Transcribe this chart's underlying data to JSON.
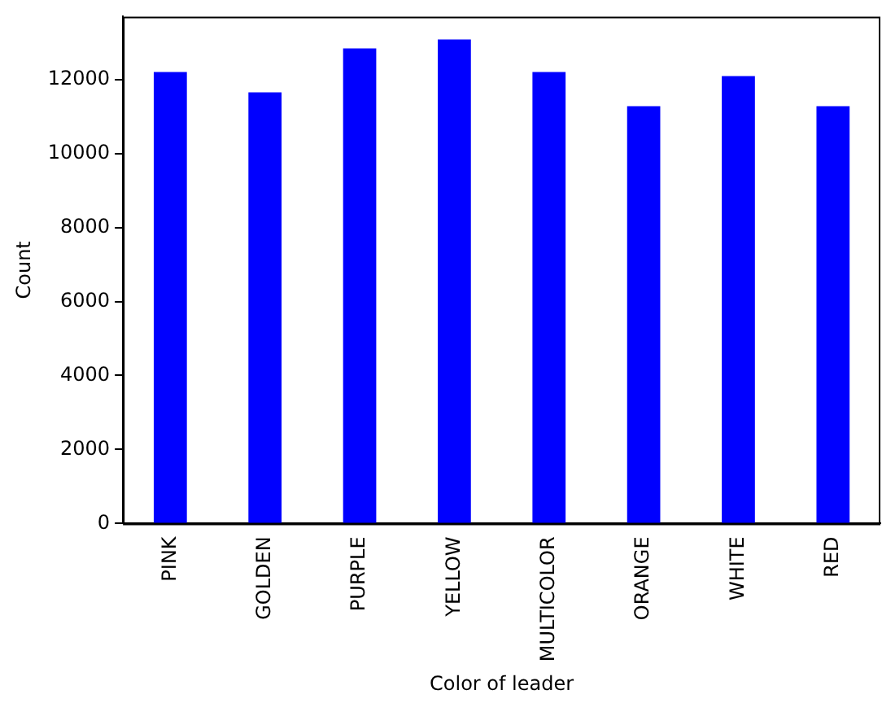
{
  "chart_data": {
    "type": "bar",
    "xlabel": "Color of leader",
    "ylabel": "Count",
    "categories": [
      "PINK",
      "GOLDEN",
      "PURPLE",
      "YELLOW",
      "MULTICOLOR",
      "ORANGE",
      "WHITE",
      "RED"
    ],
    "values": [
      12200,
      11650,
      12840,
      13080,
      12200,
      11280,
      12090,
      11280
    ],
    "color": "#0000ff",
    "ylim": [
      0,
      13700
    ],
    "yticks": [
      0,
      2000,
      4000,
      6000,
      8000,
      10000,
      12000
    ],
    "grid": false
  }
}
